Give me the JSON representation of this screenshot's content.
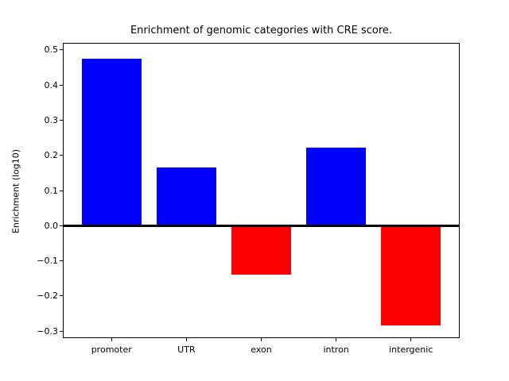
{
  "figure": {
    "background": "#ffffff"
  },
  "chart_data": {
    "type": "bar",
    "title": "Enrichment of genomic categories with CRE score.",
    "xlabel": "",
    "ylabel": "Enrichment (log10)",
    "categories": [
      "promoter",
      "UTR",
      "exon",
      "intron",
      "intergenic"
    ],
    "values": [
      0.474,
      0.166,
      -0.139,
      0.223,
      -0.284
    ],
    "bar_colors": [
      "#0000ff",
      "#0000ff",
      "#ff0000",
      "#0000ff",
      "#ff0000"
    ],
    "positive_color": "#0000ff",
    "negative_color": "#ff0000",
    "bar_width_fraction": 0.8,
    "xlim": [
      -0.64,
      4.64
    ],
    "ylim": [
      -0.318,
      0.518
    ],
    "yticks": [
      0.5,
      0.4,
      0.3,
      0.2,
      0.1,
      0.0,
      -0.1,
      -0.2,
      -0.3
    ],
    "ytick_labels": [
      "0.5",
      "0.4",
      "0.3",
      "0.2",
      "0.1",
      "0.0",
      "−0.1",
      "−0.2",
      "−0.3"
    ],
    "zero_line": {
      "value": 0.0,
      "color": "#000000",
      "linewidth": 3
    },
    "grid": false,
    "legend": null,
    "axis_color": "#000000",
    "text_color": "#000000"
  }
}
